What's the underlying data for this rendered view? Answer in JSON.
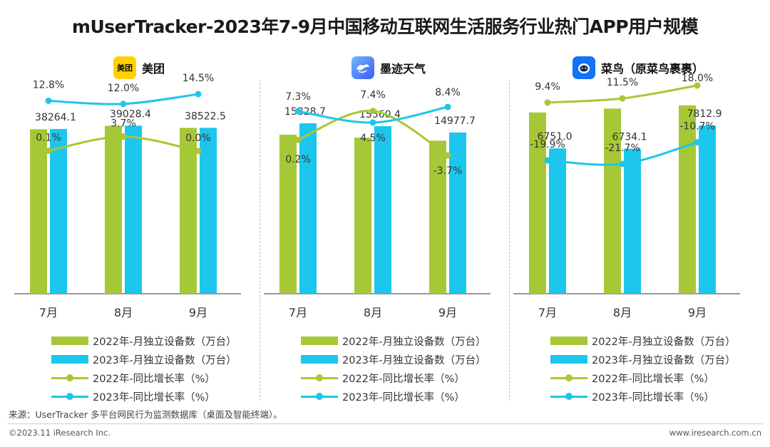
{
  "title": "mUserTracker-2023年7-9月中国移动互联网生活服务行业热门APP用户规模",
  "colors": {
    "bar2022": "#a7c836",
    "bar2023": "#1cc6ec",
    "line2022": "#a7c836",
    "line2023": "#1cc6ec",
    "axis": "#777777",
    "meituan_icon_bg": "#ffd100",
    "moji_icon_bg": "#3d7cf0",
    "cainiao_icon_bg": "#1273f5"
  },
  "legend": [
    {
      "label": "2022年-月独立设备数（万台）",
      "kind": "bar",
      "color_key": "bar2022"
    },
    {
      "label": "2023年-月独立设备数（万台）",
      "kind": "bar",
      "color_key": "bar2023"
    },
    {
      "label": "2022年-同比增长率（%）",
      "kind": "line",
      "color_key": "line2022"
    },
    {
      "label": "2023年-同比增长率（%）",
      "kind": "line",
      "color_key": "line2023"
    }
  ],
  "chart_data": [
    {
      "type": "bar+line",
      "title": "美团",
      "icon": "meituan-logo-icon",
      "icon_text": "美团",
      "categories": [
        "7月",
        "8月",
        "9月"
      ],
      "bar_ylim": [
        0,
        50000
      ],
      "bar_series": [
        {
          "name": "2022年-月独立设备数（万台）",
          "values": [
            38200,
            38990,
            38510
          ]
        },
        {
          "name": "2023年-月独立设备数（万台）",
          "values": [
            38264.1,
            39028.4,
            38522.5
          ],
          "labels": [
            "38264.1",
            "39028.4",
            "38522.5"
          ]
        }
      ],
      "line_series": [
        {
          "name": "2022年-同比增长率（%）",
          "values": [
            0.1,
            3.7,
            0.0
          ],
          "labels": [
            "0.1%",
            "3.7%",
            "0.0%"
          ]
        },
        {
          "name": "2023年-同比增长率（%）",
          "values": [
            12.8,
            12.0,
            14.5
          ],
          "labels": [
            "12.8%",
            "12.0%",
            "14.5%"
          ]
        }
      ]
    },
    {
      "type": "bar+line",
      "title": "墨迹天气",
      "icon": "moji-weather-logo-icon",
      "icon_text": "",
      "categories": [
        "7月",
        "8月",
        "9月"
      ],
      "bar_ylim": [
        0,
        20000
      ],
      "bar_series": [
        {
          "name": "2022年-月独立设备数（万台）",
          "values": [
            14780,
            14500,
            14220
          ]
        },
        {
          "name": "2023年-月独立设备数（万台）",
          "values": [
            15828.7,
            15560.4,
            14977.7
          ],
          "labels": [
            "15828.7",
            "15560.4",
            "14977.7"
          ]
        }
      ],
      "line_series": [
        {
          "name": "2022年-同比增长率（%）",
          "values": [
            0.2,
            7.4,
            -3.7
          ],
          "labels": [
            "0.2%",
            "7.4%",
            "-3.7%"
          ]
        },
        {
          "name": "2023年-同比增长率（%）",
          "values": [
            7.3,
            4.5,
            8.4
          ],
          "labels": [
            "7.3%",
            "4.5%",
            "8.4%"
          ]
        }
      ]
    },
    {
      "type": "bar+line",
      "title": "菜鸟（原菜鸟裹裹）",
      "icon": "cainiao-logo-icon",
      "icon_text": "",
      "categories": [
        "7月",
        "8月",
        "9月"
      ],
      "bar_ylim": [
        0,
        10000
      ],
      "bar_series": [
        {
          "name": "2022年-月独立设备数（万台）",
          "values": [
            8420,
            8600,
            8750
          ]
        },
        {
          "name": "2023年-月独立设备数（万台）",
          "values": [
            6751.0,
            6734.1,
            7812.9
          ],
          "labels": [
            "6751.0",
            "6734.1",
            "7812.9"
          ]
        }
      ],
      "line_series": [
        {
          "name": "2022年-同比增长率（%）",
          "values": [
            9.4,
            11.5,
            18.0
          ],
          "labels": [
            "9.4%",
            "11.5%",
            "18.0%"
          ]
        },
        {
          "name": "2023年-同比增长率（%）",
          "values": [
            -19.9,
            -21.7,
            -10.7
          ],
          "labels": [
            "-19.9%",
            "-21.7%",
            "-10.7%"
          ]
        }
      ]
    }
  ],
  "footer": {
    "source": "来源：UserTracker 多平台网民行为监测数据库（桌面及智能终端）。",
    "copyright": "©2023.11 iResearch Inc.",
    "website": "www.iresearch.com.cn"
  }
}
